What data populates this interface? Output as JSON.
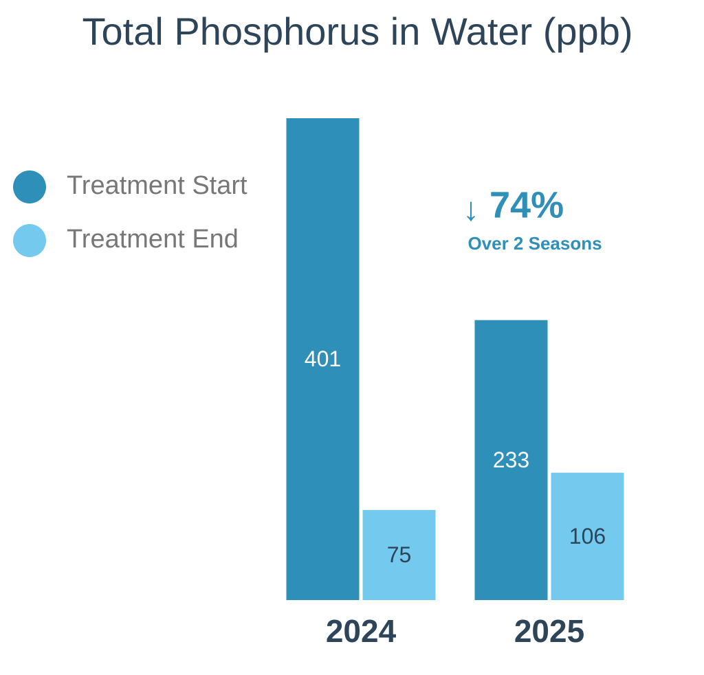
{
  "chart_data": {
    "type": "bar",
    "title": "Total Phosphorus in Water (ppb)",
    "categories": [
      "2024",
      "2025"
    ],
    "series": [
      {
        "name": "Treatment Start",
        "color": "#2e8fb8",
        "values": [
          401,
          233
        ]
      },
      {
        "name": "Treatment End",
        "color": "#74c9ee",
        "values": [
          75,
          106
        ]
      }
    ],
    "annotation": {
      "arrow": "↓",
      "label": "74%",
      "note": "Over 2 Seasons"
    },
    "legend": "left"
  }
}
